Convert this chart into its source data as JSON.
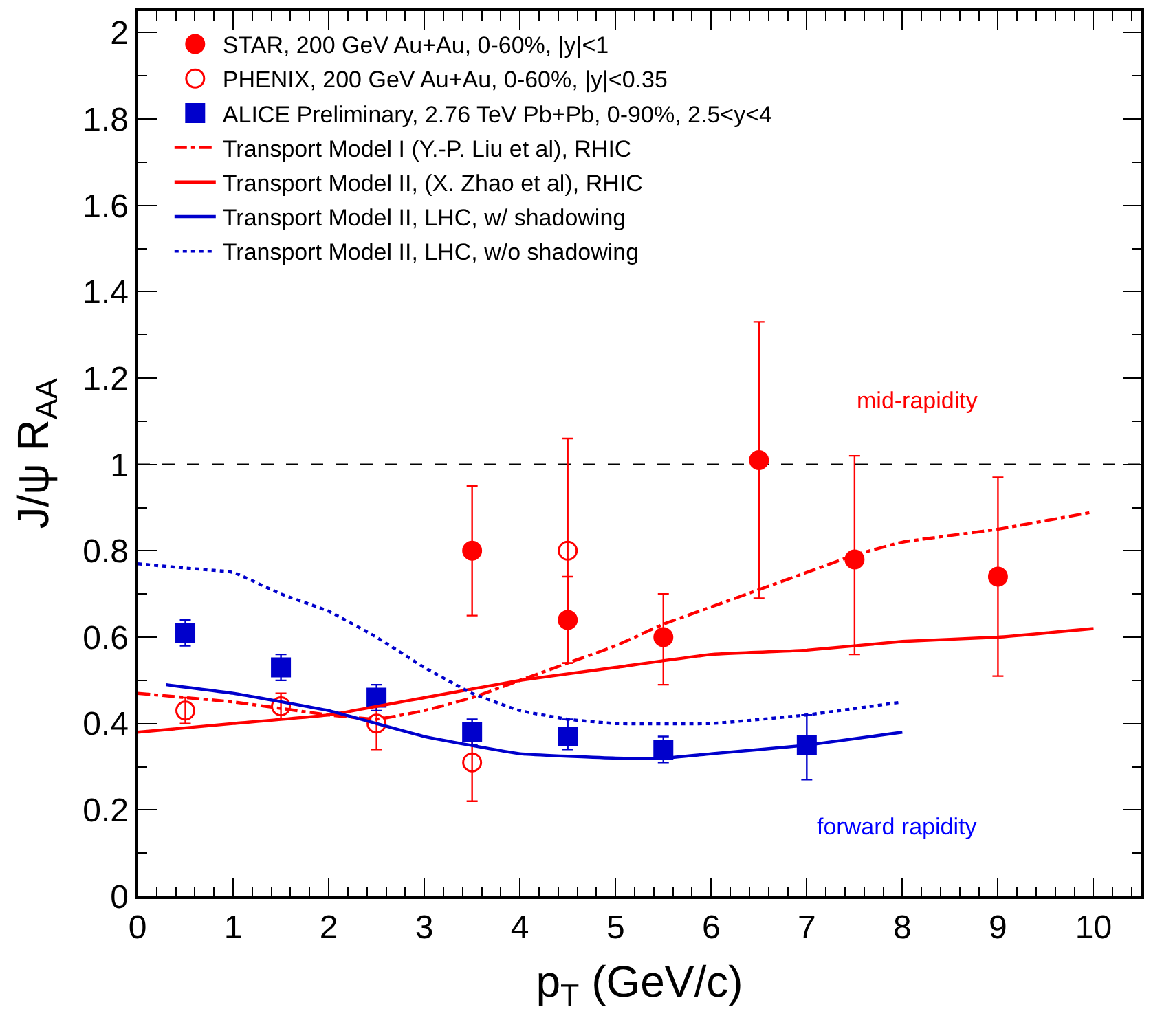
{
  "chart_data": {
    "type": "scatter",
    "xlabel": "p$_{T}$ (GeV/c)",
    "ylabel": "J/ψ R$_{AA}$",
    "xlim": [
      0,
      10.5
    ],
    "ylim": [
      0,
      2.05
    ],
    "xticks": [
      0,
      1,
      2,
      3,
      4,
      5,
      6,
      7,
      8,
      9,
      10
    ],
    "yticks": [
      0,
      0.2,
      0.4,
      0.6,
      0.8,
      1,
      1.2,
      1.4,
      1.6,
      1.8,
      2
    ],
    "grid": false,
    "legend": "top left",
    "series": [
      {
        "name": "STAR, 200 GeV Au+Au, 0-60%, |y|<1",
        "color": "#ff0000",
        "marker": "circle",
        "x": [
          3.5,
          4.5,
          5.5,
          6.5,
          7.5,
          9
        ],
        "values": [
          0.8,
          0.64,
          0.6,
          1.01,
          0.78,
          0.74
        ],
        "errors": [
          [
            0.65,
            0.95
          ],
          [
            0.54,
            0.74
          ],
          [
            0.49,
            0.7
          ],
          [
            0.69,
            1.33
          ],
          [
            0.56,
            1.02
          ],
          [
            0.51,
            0.97
          ]
        ]
      },
      {
        "name": "PHENIX, 200 GeV Au+Au, 0-60%, |y|<0.35",
        "color": "#ff0000",
        "marker": "circle-open",
        "x": [
          0.5,
          1.5,
          2.5,
          3.5,
          4.5
        ],
        "values": [
          0.43,
          0.44,
          0.4,
          0.31,
          0.8
        ],
        "errors": [
          [
            0.4,
            0.46
          ],
          [
            0.41,
            0.47
          ],
          [
            0.34,
            0.44
          ],
          [
            0.22,
            0.4
          ],
          [
            0.54,
            1.06
          ]
        ]
      },
      {
        "name": "ALICE Preliminary, 2.76 TeV Pb+Pb, 0-90%, 2.5<y<4",
        "color": "#0000cc",
        "marker": "square",
        "x": [
          0.5,
          1.5,
          2.5,
          3.5,
          4.5,
          5.5,
          7
        ],
        "values": [
          0.61,
          0.53,
          0.46,
          0.38,
          0.37,
          0.34,
          0.35
        ],
        "errors": [
          [
            0.58,
            0.64
          ],
          [
            0.5,
            0.56
          ],
          [
            0.43,
            0.49
          ],
          [
            0.35,
            0.41
          ],
          [
            0.34,
            0.41
          ],
          [
            0.31,
            0.37
          ],
          [
            0.27,
            0.42
          ]
        ]
      },
      {
        "name": "Transport Model I (Y.-P. Liu et al), RHIC",
        "color": "#ff0000",
        "type": "line",
        "line_style": "dashdot",
        "x": [
          0,
          1,
          2,
          2.5,
          3,
          3.5,
          4,
          4.5,
          5,
          5.5,
          6,
          6.5,
          7,
          7.5,
          8,
          9,
          10
        ],
        "values": [
          0.47,
          0.45,
          0.42,
          0.41,
          0.43,
          0.46,
          0.5,
          0.54,
          0.58,
          0.63,
          0.67,
          0.71,
          0.75,
          0.79,
          0.82,
          0.85,
          0.89
        ]
      },
      {
        "name": "Transport Model II, (X. Zhao et al), RHIC",
        "color": "#ff0000",
        "type": "line",
        "line_style": "solid",
        "x": [
          0,
          1,
          2,
          3,
          4,
          5,
          6,
          7,
          8,
          9,
          10
        ],
        "values": [
          0.38,
          0.4,
          0.42,
          0.46,
          0.5,
          0.53,
          0.56,
          0.57,
          0.59,
          0.6,
          0.62
        ]
      },
      {
        "name": "Transport Model II, LHC, w/ shadowing",
        "color": "#0000cc",
        "type": "line",
        "line_style": "solid",
        "x": [
          0.3,
          1,
          2,
          3,
          4,
          5,
          5.5,
          6,
          7,
          8
        ],
        "values": [
          0.49,
          0.47,
          0.43,
          0.37,
          0.33,
          0.32,
          0.32,
          0.33,
          0.35,
          0.38
        ]
      },
      {
        "name": "Transport Model II, LHC, w/o shadowing",
        "color": "#0000cc",
        "type": "line",
        "line_style": "dotted",
        "x": [
          0,
          0.5,
          1,
          1.5,
          2,
          2.5,
          3,
          3.5,
          4,
          4.5,
          5,
          6,
          7,
          8
        ],
        "values": [
          0.77,
          0.76,
          0.75,
          0.7,
          0.66,
          0.6,
          0.53,
          0.47,
          0.43,
          0.41,
          0.4,
          0.4,
          0.42,
          0.45
        ]
      }
    ],
    "ref_lines": [
      {
        "axis": "y",
        "value": 1,
        "color": "#000000",
        "line_style": "dashed"
      }
    ],
    "annotations": [
      "mid-rapidity",
      "forward rapidity"
    ]
  }
}
